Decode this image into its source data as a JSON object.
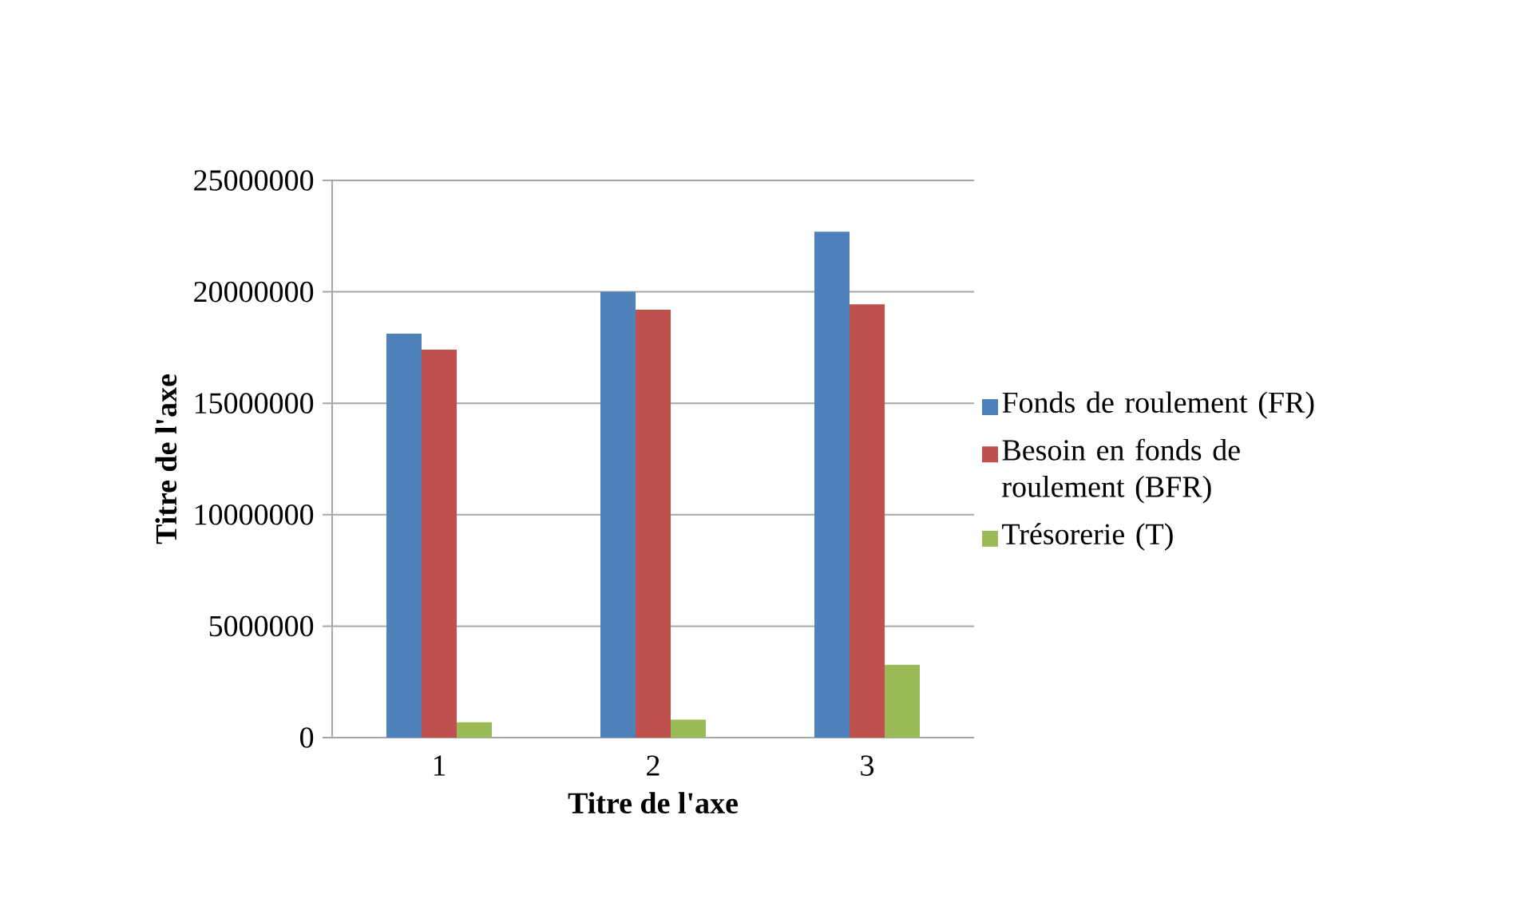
{
  "chart_data": {
    "type": "bar",
    "xlabel": "Titre de l'axe",
    "ylabel": "Titre de l'axe",
    "categories": [
      "1",
      "2",
      "3"
    ],
    "series": [
      {
        "name": "Fonds de roulement (FR)",
        "color": "#4f81bd",
        "values": [
          18120000,
          20000000,
          22700000
        ]
      },
      {
        "name": "Besoin en fonds de roulement (BFR)",
        "color": "#c0504d",
        "values": [
          17410000,
          19200000,
          19440000
        ]
      },
      {
        "name": "Trésorerie (T)",
        "color": "#9bbb59",
        "values": [
          690000,
          810000,
          3270000
        ]
      }
    ],
    "ylim": [
      0,
      25000000
    ],
    "yticks": [
      0,
      5000000,
      10000000,
      15000000,
      20000000,
      25000000
    ],
    "grid": "y",
    "legend": "right"
  }
}
